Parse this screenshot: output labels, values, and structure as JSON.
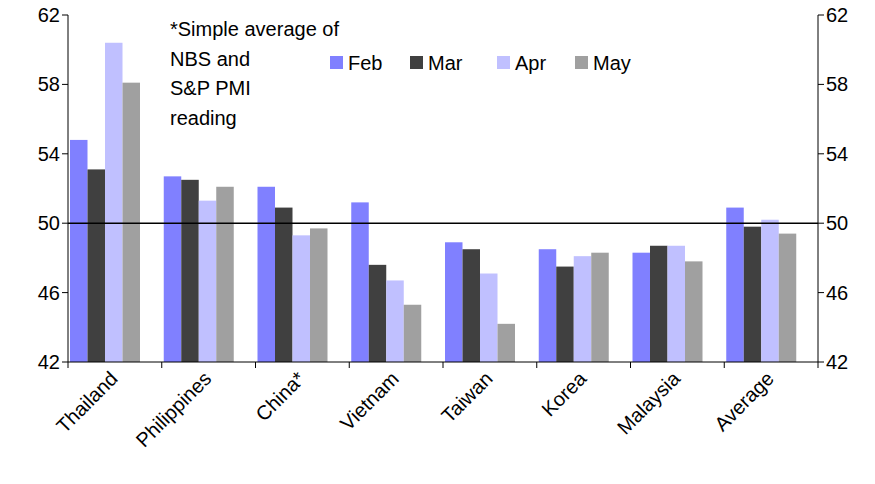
{
  "chart_data": {
    "type": "bar",
    "annotation": [
      "*Simple average of",
      "NBS and",
      "S&P PMI",
      "reading"
    ],
    "categories": [
      "Thailand",
      "Philippines",
      "China*",
      "Vietnam",
      "Taiwan",
      "Korea",
      "Malaysia",
      "Average"
    ],
    "series": [
      {
        "name": "Feb",
        "color": "#8080ff",
        "values": [
          54.8,
          52.7,
          52.1,
          51.2,
          48.9,
          48.5,
          48.3,
          50.9
        ]
      },
      {
        "name": "Mar",
        "color": "#404040",
        "values": [
          53.1,
          52.5,
          50.9,
          47.6,
          48.5,
          47.5,
          48.7,
          49.8
        ]
      },
      {
        "name": "Apr",
        "color": "#c0c0ff",
        "values": [
          60.4,
          51.3,
          49.3,
          46.7,
          47.1,
          48.1,
          48.7,
          50.2
        ]
      },
      {
        "name": "May",
        "color": "#a0a0a0",
        "values": [
          58.1,
          52.1,
          49.7,
          45.3,
          44.2,
          48.3,
          47.8,
          49.4
        ]
      }
    ],
    "ylim": [
      42,
      62
    ],
    "yticks": [
      42,
      46,
      50,
      54,
      58,
      62
    ],
    "y2lim": [
      42,
      62
    ],
    "y2ticks": [
      42,
      46,
      50,
      54,
      58,
      62
    ],
    "hline": 50,
    "legend": "top",
    "grid": false
  }
}
